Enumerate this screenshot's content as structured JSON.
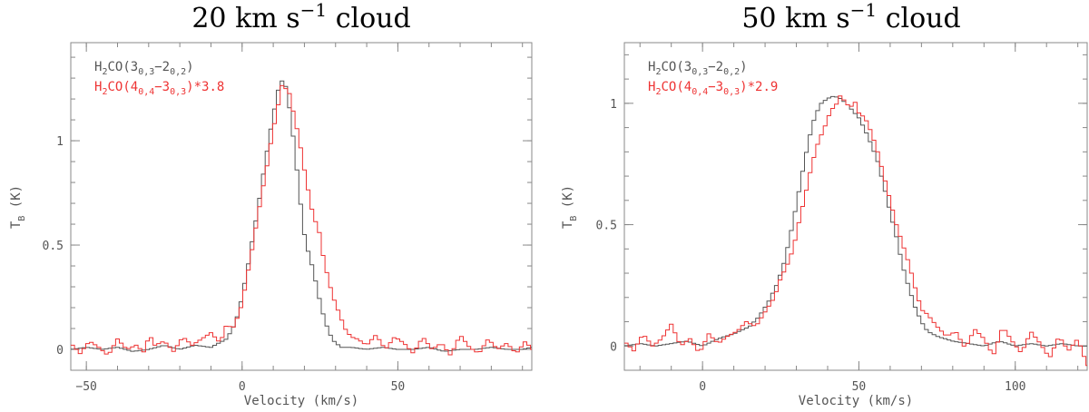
{
  "colors": {
    "gray": "#555555",
    "red": "#ee3333"
  },
  "chart_data": [
    {
      "type": "line",
      "step": true,
      "title": {
        "value": "20",
        "unit": "km",
        "s": "s",
        "exp": "−1",
        "word": "cloud"
      },
      "xlabel": "Velocity (km/s)",
      "ylabel": {
        "main": "T",
        "sub": "B",
        "unit": "(K)"
      },
      "xlim": [
        -55,
        93
      ],
      "ylim": [
        -0.1,
        1.47
      ],
      "xticks": [
        {
          "v": -50,
          "label": "−50"
        },
        {
          "v": 0,
          "label": "0"
        },
        {
          "v": 50,
          "label": "50"
        }
      ],
      "yticks": [
        {
          "v": 0,
          "label": "0"
        },
        {
          "v": 0.5,
          "label": "0.5"
        },
        {
          "v": 1,
          "label": "1"
        }
      ],
      "legend_position": "top-left",
      "series": [
        {
          "color": "#555555",
          "legend": {
            "pre": "H",
            "s1": "2",
            "mid": "CO(3",
            "s2": "0,3",
            "mid2": "−2",
            "s3": "0,2",
            "post": ")"
          },
          "x": [
            -55,
            -50,
            -45,
            -40,
            -35,
            -30,
            -25,
            -20,
            -15,
            -10,
            -5,
            -3,
            -1,
            0,
            1,
            2,
            3,
            4,
            5,
            6,
            7,
            8,
            9,
            10,
            11,
            12,
            13,
            14,
            15,
            16,
            17,
            18,
            19,
            20,
            21,
            22,
            23,
            24,
            25,
            26,
            27,
            28,
            29,
            30,
            31,
            32,
            35,
            40,
            45,
            50,
            55,
            60,
            65,
            70,
            75,
            80,
            85,
            90,
            93
          ],
          "y": [
            0.0,
            0.01,
            0.0,
            0.01,
            -0.01,
            0.0,
            0.02,
            0.0,
            0.02,
            0.01,
            0.05,
            0.1,
            0.18,
            0.26,
            0.33,
            0.41,
            0.5,
            0.58,
            0.67,
            0.76,
            0.86,
            0.95,
            1.04,
            1.12,
            1.2,
            1.27,
            1.29,
            1.26,
            1.18,
            1.07,
            0.95,
            0.8,
            0.67,
            0.55,
            0.48,
            0.43,
            0.37,
            0.3,
            0.23,
            0.17,
            0.12,
            0.08,
            0.05,
            0.03,
            0.02,
            0.01,
            0.01,
            0.0,
            0.01,
            0.0,
            0.0,
            0.01,
            -0.01,
            0.0,
            0.0,
            0.01,
            0.0,
            0.0,
            0.01
          ]
        },
        {
          "color": "#ee3333",
          "legend": {
            "pre": "H",
            "s1": "2",
            "mid": "CO(4",
            "s2": "0,4",
            "mid2": "−3",
            "s3": "0,3",
            "post": ")*3.8"
          },
          "x": [
            -55,
            -52,
            -49,
            -46,
            -43,
            -40,
            -37,
            -34,
            -31,
            -30,
            -28,
            -25,
            -22,
            -19,
            -16,
            -13,
            -10,
            -7,
            -5,
            -3,
            -1,
            0,
            1,
            2,
            3,
            4,
            5,
            6,
            7,
            8,
            9,
            10,
            11,
            12,
            13,
            14,
            15,
            16,
            17,
            18,
            19,
            20,
            21,
            22,
            23,
            24,
            25,
            26,
            27,
            28,
            29,
            30,
            31,
            32,
            33,
            34,
            35,
            37,
            40,
            43,
            46,
            49,
            52,
            55,
            58,
            61,
            64,
            67,
            70,
            73,
            76,
            79,
            82,
            85,
            88,
            91,
            93
          ],
          "y": [
            0.03,
            -0.02,
            0.04,
            0.01,
            -0.03,
            0.05,
            0.0,
            0.02,
            -0.02,
            0.08,
            0.02,
            0.04,
            -0.01,
            0.06,
            0.02,
            0.05,
            0.08,
            0.03,
            0.12,
            0.1,
            0.17,
            0.22,
            0.3,
            0.38,
            0.46,
            0.55,
            0.63,
            0.72,
            0.8,
            0.88,
            0.97,
            1.05,
            1.13,
            1.2,
            1.28,
            1.25,
            1.24,
            1.17,
            1.1,
            1.03,
            0.95,
            0.86,
            0.78,
            0.7,
            0.63,
            0.6,
            0.55,
            0.45,
            0.38,
            0.32,
            0.26,
            0.22,
            0.18,
            0.14,
            0.1,
            0.08,
            0.06,
            0.05,
            0.02,
            0.07,
            0.0,
            0.06,
            0.03,
            -0.02,
            0.06,
            0.0,
            0.03,
            -0.03,
            0.07,
            0.01,
            -0.02,
            0.05,
            0.0,
            0.03,
            -0.02,
            0.04,
            0.0
          ]
        }
      ]
    },
    {
      "type": "line",
      "step": true,
      "title": {
        "value": "50",
        "unit": "km",
        "s": "s",
        "exp": "−1",
        "word": "cloud"
      },
      "xlabel": "Velocity (km/s)",
      "ylabel": {
        "main": "T",
        "sub": "B",
        "unit": "(K)"
      },
      "xlim": [
        -25,
        123
      ],
      "ylim": [
        -0.1,
        1.25
      ],
      "xticks": [
        {
          "v": 0,
          "label": "0"
        },
        {
          "v": 50,
          "label": "50"
        },
        {
          "v": 100,
          "label": "100"
        }
      ],
      "yticks": [
        {
          "v": 0,
          "label": "0"
        },
        {
          "v": 0.5,
          "label": "0.5"
        },
        {
          "v": 1,
          "label": "1"
        }
      ],
      "legend_position": "top-left",
      "series": [
        {
          "color": "#555555",
          "legend": {
            "pre": "H",
            "s1": "2",
            "mid": "CO(3",
            "s2": "0,3",
            "mid2": "−2",
            "s3": "0,2",
            "post": ")"
          },
          "x": [
            -25,
            -20,
            -15,
            -10,
            -5,
            0,
            5,
            10,
            15,
            18,
            21,
            24,
            26,
            28,
            30,
            32,
            34,
            36,
            38,
            40,
            42,
            44,
            46,
            48,
            50,
            52,
            54,
            56,
            58,
            60,
            62,
            64,
            66,
            68,
            70,
            72,
            75,
            80,
            85,
            90,
            95,
            100,
            105,
            110,
            115,
            120,
            123
          ],
          "y": [
            0.0,
            0.01,
            0.0,
            0.01,
            0.02,
            0.0,
            0.03,
            0.05,
            0.08,
            0.12,
            0.18,
            0.26,
            0.34,
            0.45,
            0.58,
            0.72,
            0.85,
            0.95,
            1.0,
            1.02,
            1.03,
            1.02,
            1.0,
            0.97,
            0.94,
            0.89,
            0.83,
            0.76,
            0.66,
            0.55,
            0.45,
            0.33,
            0.24,
            0.16,
            0.1,
            0.06,
            0.04,
            0.02,
            0.01,
            0.0,
            0.02,
            0.0,
            0.01,
            0.0,
            0.01,
            0.0,
            0.0
          ]
        },
        {
          "color": "#ee3333",
          "legend": {
            "pre": "H",
            "s1": "2",
            "mid": "CO(4",
            "s2": "0,4",
            "mid2": "−3",
            "s3": "0,3",
            "post": ")*2.9"
          },
          "x": [
            -25,
            -22,
            -19,
            -16,
            -13,
            -10,
            -7,
            -4,
            -1,
            2,
            5,
            8,
            11,
            14,
            17,
            20,
            23,
            25,
            27,
            29,
            31,
            33,
            35,
            37,
            39,
            41,
            43,
            44,
            45,
            46,
            47,
            48,
            49,
            50,
            52,
            54,
            56,
            58,
            60,
            62,
            64,
            66,
            68,
            70,
            72,
            75,
            78,
            81,
            84,
            87,
            90,
            93,
            96,
            99,
            102,
            105,
            108,
            111,
            114,
            117,
            120,
            123
          ],
          "y": [
            0.02,
            -0.02,
            0.05,
            0.0,
            0.03,
            0.09,
            0.0,
            0.03,
            -0.03,
            0.05,
            0.01,
            0.04,
            0.06,
            0.1,
            0.08,
            0.14,
            0.2,
            0.28,
            0.33,
            0.4,
            0.52,
            0.63,
            0.75,
            0.84,
            0.9,
            0.97,
            1.0,
            1.03,
            1.02,
            0.99,
            1.0,
            0.98,
            1.01,
            0.96,
            0.94,
            0.88,
            0.8,
            0.7,
            0.6,
            0.5,
            0.42,
            0.34,
            0.24,
            0.15,
            0.13,
            0.08,
            0.04,
            0.06,
            -0.01,
            0.07,
            0.03,
            -0.04,
            0.08,
            0.02,
            -0.03,
            0.06,
            0.01,
            -0.05,
            0.04,
            -0.02,
            0.03,
            -0.08
          ]
        }
      ]
    }
  ]
}
